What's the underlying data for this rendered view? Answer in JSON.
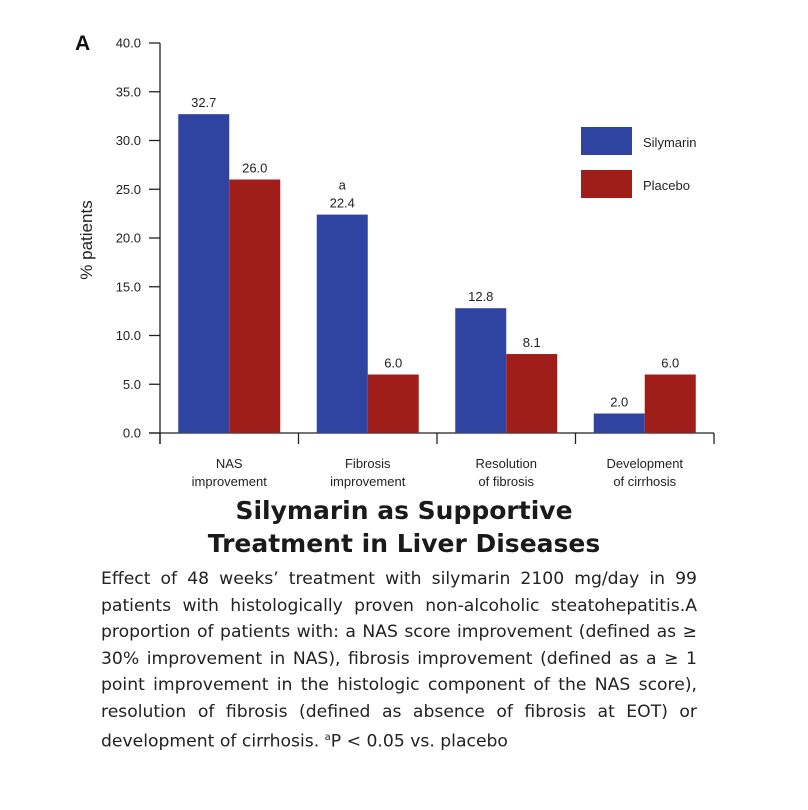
{
  "chart_data": {
    "type": "bar",
    "panel_label": "A",
    "title": "Silymarin as Supportive Treatment in Liver Diseases",
    "xlabel": "",
    "ylabel": "% patients",
    "ylim": [
      0,
      40
    ],
    "yticks": [
      "0.0",
      "5.0",
      "10.0",
      "15.0",
      "20.0",
      "25.0",
      "30.0",
      "35.0",
      "40.0"
    ],
    "grid": false,
    "legend_position": "top-right",
    "categories": [
      [
        "NAS",
        "improvement"
      ],
      [
        "Fibrosis",
        "improvement"
      ],
      [
        "Resolution",
        "of fibrosis"
      ],
      [
        "Development",
        "of cirrhosis"
      ]
    ],
    "series": [
      {
        "name": "Silymarin",
        "color": "#2e44a0",
        "values": [
          32.7,
          22.4,
          12.8,
          2.0
        ],
        "labels": [
          "32.7",
          "22.4",
          "12.8",
          "2.0"
        ]
      },
      {
        "name": "Placebo",
        "color": "#a01e1a",
        "values": [
          26.0,
          6.0,
          8.1,
          6.0
        ],
        "labels": [
          "26.0",
          "6.0",
          "8.1",
          "6.0"
        ]
      }
    ],
    "annotations": [
      {
        "series": "Silymarin",
        "category_index": 1,
        "text": "a"
      }
    ]
  },
  "caption": {
    "title_line1": "Silymarin as Supportive",
    "title_line2": "Treatment in Liver Diseases",
    "text_main": "Effect of 48 weeks’ treatment with silymarin 2100 mg/day in 99 patients with histologically proven non-alcoholic steatohepatitis.A proportion of patients with: a NAS score improvement (defined as ≥ 30% improvement in NAS), fibrosis improvement (defined as a ≥ 1 point improvement in the histologic component of the NAS score), resolution of fibrosis (defined as absence of fibrosis at EOT) or development of cirrhosis. ",
    "footnote_mark": "a",
    "footnote_text": "P < 0.05 vs. placebo"
  }
}
